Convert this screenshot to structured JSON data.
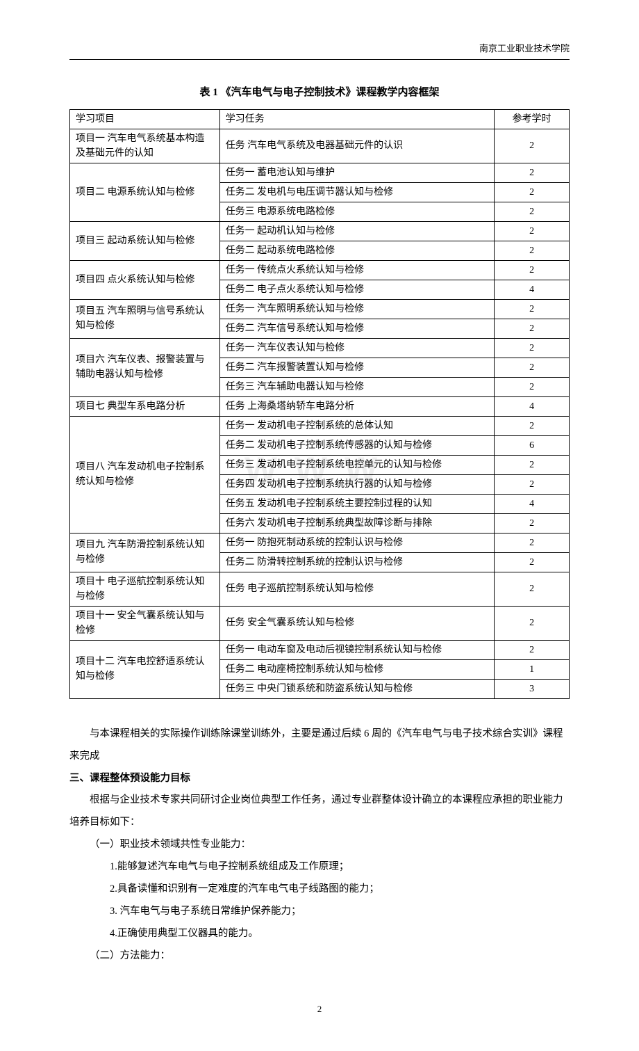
{
  "header": {
    "institution": "南京工业职业技术学院"
  },
  "table": {
    "title": "表 1  《汽车电气与电子控制技术》课程教学内容框架",
    "columns": [
      "学习项目",
      "学习任务",
      "参考学时"
    ],
    "projects": [
      {
        "name": "项目一 汽车电气系统基本构造及基础元件的认知",
        "tasks": [
          {
            "task": "任务 汽车电气系统及电器基础元件的认识",
            "hours": "2"
          }
        ]
      },
      {
        "name": "项目二 电源系统认知与检修",
        "tasks": [
          {
            "task": "任务一 蓄电池认知与维护",
            "hours": "2"
          },
          {
            "task": "任务二 发电机与电压调节器认知与检修",
            "hours": "2"
          },
          {
            "task": "任务三 电源系统电路检修",
            "hours": "2"
          }
        ]
      },
      {
        "name": "项目三 起动系统认知与检修",
        "tasks": [
          {
            "task": "任务一 起动机认知与检修",
            "hours": "2"
          },
          {
            "task": "任务二 起动系统电路检修",
            "hours": "2"
          }
        ]
      },
      {
        "name": "项目四 点火系统认知与检修",
        "tasks": [
          {
            "task": "任务一 传统点火系统认知与检修",
            "hours": "2"
          },
          {
            "task": "任务二 电子点火系统认知与检修",
            "hours": "4"
          }
        ]
      },
      {
        "name": "项目五 汽车照明与信号系统认知与检修",
        "tasks": [
          {
            "task": "任务一 汽车照明系统认知与检修",
            "hours": "2"
          },
          {
            "task": "任务二 汽车信号系统认知与检修",
            "hours": "2"
          }
        ]
      },
      {
        "name": "项目六 汽车仪表、报警装置与辅助电器认知与检修",
        "tasks": [
          {
            "task": "任务一 汽车仪表认知与检修",
            "hours": "2"
          },
          {
            "task": "任务二 汽车报警装置认知与检修",
            "hours": "2"
          },
          {
            "task": "任务三 汽车辅助电器认知与检修",
            "hours": "2"
          }
        ]
      },
      {
        "name": "项目七 典型车系电路分析",
        "tasks": [
          {
            "task": "任务 上海桑塔纳轿车电路分析",
            "hours": "4"
          }
        ]
      },
      {
        "name": "项目八 汽车发动机电子控制系统认知与检修",
        "tasks": [
          {
            "task": "任务一 发动机电子控制系统的总体认知",
            "hours": "2"
          },
          {
            "task": "任务二 发动机电子控制系统传感器的认知与检修",
            "hours": "6"
          },
          {
            "task": "任务三 发动机电子控制系统电控单元的认知与检修",
            "hours": "2"
          },
          {
            "task": "任务四 发动机电子控制系统执行器的认知与检修",
            "hours": "2"
          },
          {
            "task": "任务五 发动机电子控制系统主要控制过程的认知",
            "hours": "4"
          },
          {
            "task": "任务六 发动机电子控制系统典型故障诊断与排除",
            "hours": "2"
          }
        ]
      },
      {
        "name": "项目九 汽车防滑控制系统认知与检修",
        "tasks": [
          {
            "task": "任务一 防抱死制动系统的控制认识与检修",
            "hours": "2"
          },
          {
            "task": "任务二 防滑转控制系统的控制认识与检修",
            "hours": "2"
          }
        ]
      },
      {
        "name": "项目十 电子巡航控制系统认知与检修",
        "tasks": [
          {
            "task": "任务 电子巡航控制系统认知与检修",
            "hours": "2"
          }
        ]
      },
      {
        "name": "项目十一 安全气囊系统认知与检修",
        "tasks": [
          {
            "task": "任务 安全气囊系统认知与检修",
            "hours": "2"
          }
        ]
      },
      {
        "name": "项目十二 汽车电控舒适系统认知与检修",
        "tasks": [
          {
            "task": "任务一 电动车窗及电动后视镜控制系统认知与检修",
            "hours": "2"
          },
          {
            "task": "任务二 电动座椅控制系统认知与检修",
            "hours": "1"
          },
          {
            "task": "任务三 中央门锁系统和防盗系统认知与检修",
            "hours": "3"
          }
        ]
      }
    ]
  },
  "body": {
    "p1": "与本课程相关的实际操作训练除课堂训练外，主要是通过后续 6 周的《汽车电气与电子技术综合实训》课程来完成",
    "heading": "三、课程整体预设能力目标",
    "p2": "根据与企业技术专家共同研讨企业岗位典型工作任务，通过专业群整体设计确立的本课程应承担的职业能力培养目标如下：",
    "sec1_title": "（一）职业技术领域共性专业能力：",
    "sec1_items": [
      "1.能够复述汽车电气与电子控制系统组成及工作原理；",
      "2.具备读懂和识别有一定难度的汽车电气电子线路图的能力；",
      "3. 汽车电气与电子系统日常维护保养能力；",
      "4.正确使用典型工仪器具的能力。"
    ],
    "sec2_title": "（二）方法能力："
  },
  "pageNumber": "2",
  "watermark": "WWW",
  "styling": {
    "page_bg": "#ffffff",
    "text_color": "#000000",
    "border_color": "#000000",
    "font_family": "SimSun",
    "base_fontsize": 14,
    "title_fontsize": 15,
    "line_height": 1.6,
    "body_line_height": 2.2,
    "watermark_color": "rgba(0,0,0,0.06)"
  }
}
